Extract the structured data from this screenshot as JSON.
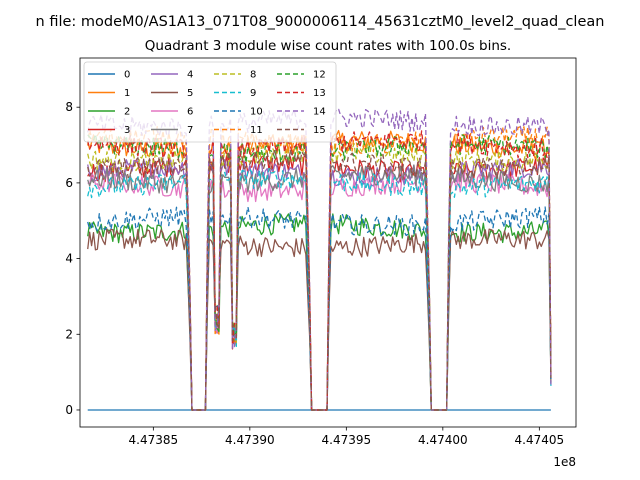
{
  "figure": {
    "suptitle": "n file: modeM0/AS1A13_071T08_9000006114_45631cztM0_level2_quad_clean",
    "title": "Quadrant 3 module wise count rates with 100.0s bins."
  },
  "chart_data": {
    "type": "line",
    "title": "Quadrant 3 module wise count rates with 100.0s bins.",
    "xlabel": "",
    "ylabel": "",
    "xlim": [
      447381200,
      447406900
    ],
    "ylim": [
      -0.45,
      9.3
    ],
    "x_offset_label": "1e8",
    "x_ticks": [
      447385000,
      447390000,
      447395000,
      447400000,
      447405000
    ],
    "x_tick_labels": [
      "4.47385",
      "4.47390",
      "4.47395",
      "4.47400",
      "4.47405"
    ],
    "y_ticks": [
      0,
      2,
      4,
      6,
      8
    ],
    "y_tick_labels": [
      "0",
      "2",
      "4",
      "6",
      "8"
    ],
    "time_range": [
      447381600,
      447405600
    ],
    "gaps": [
      [
        447387000,
        447387700
      ],
      [
        447393200,
        447394000
      ],
      [
        447399400,
        447400200
      ]
    ],
    "dips": [
      [
        447388300,
        2.0
      ],
      [
        447389200,
        1.6
      ]
    ],
    "legend": {
      "placement": "top-left",
      "columns": 4
    },
    "series": [
      {
        "name": "0",
        "color": "#1f77b4",
        "dash": "solid",
        "level": 0.0
      },
      {
        "name": "1",
        "color": "#ff7f0e",
        "dash": "solid",
        "level": 7.0
      },
      {
        "name": "2",
        "color": "#2ca02c",
        "dash": "solid",
        "level": 4.8
      },
      {
        "name": "3",
        "color": "#d62728",
        "dash": "solid",
        "level": 6.4
      },
      {
        "name": "4",
        "color": "#9467bd",
        "dash": "solid",
        "level": 6.3
      },
      {
        "name": "5",
        "color": "#8c564b",
        "dash": "solid",
        "level": 4.4
      },
      {
        "name": "6",
        "color": "#e377c2",
        "dash": "solid",
        "level": 5.9
      },
      {
        "name": "7",
        "color": "#7f7f7f",
        "dash": "solid",
        "level": 6.1
      },
      {
        "name": "8",
        "color": "#bcbd22",
        "dash": "dashed",
        "level": 6.7
      },
      {
        "name": "9",
        "color": "#17becf",
        "dash": "dashed",
        "level": 6.0
      },
      {
        "name": "10",
        "color": "#1f77b4",
        "dash": "dashed",
        "level": 5.0
      },
      {
        "name": "11",
        "color": "#ff7f0e",
        "dash": "dashed",
        "level": 7.1
      },
      {
        "name": "12",
        "color": "#2ca02c",
        "dash": "dashed",
        "level": 6.9
      },
      {
        "name": "13",
        "color": "#d62728",
        "dash": "dashed",
        "level": 7.0
      },
      {
        "name": "14",
        "color": "#9467bd",
        "dash": "dashed",
        "level": 7.6
      },
      {
        "name": "15",
        "color": "#8c564b",
        "dash": "dashed",
        "level": 6.5
      }
    ]
  }
}
